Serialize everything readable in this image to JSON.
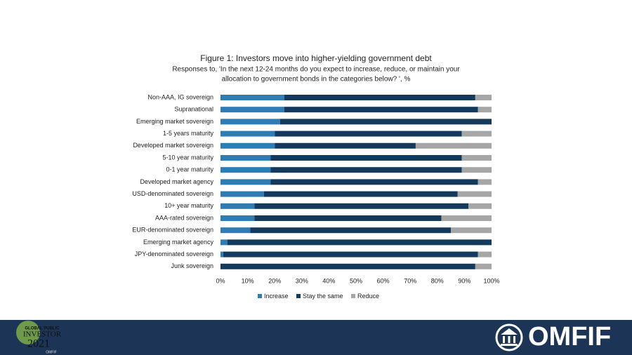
{
  "chart_data": {
    "type": "stacked-bar-horizontal",
    "title": "Figure 1: Investors move into higher-yielding government debt",
    "subtitle": [
      "Responses to, 'In the next 12-24 months  do you expect to increase, reduce, or maintain your",
      "allocation to government  bonds  in the categories below? ', %"
    ],
    "categories": [
      "Non-AAA, IG sovereign",
      "Supranational",
      "Emerging market sovereign",
      "1-5 years maturity",
      "Developed market sovereign",
      "5-10 year maturity",
      "0-1 year maturity",
      "Developed market agency",
      "USD-denominated sovereign",
      "10+ year maturity",
      "AAA-rated sovereign",
      "EUR-denominated sovereign",
      "Emerging market agency",
      "JPY-denominated sovereign",
      "Junk sovereign"
    ],
    "series": [
      {
        "name": "Increase",
        "color": "#2e7cb4",
        "values": [
          23.5,
          23.5,
          22,
          20,
          20,
          18.5,
          18.5,
          18.5,
          16,
          12.5,
          12.5,
          11,
          2.5,
          1,
          0
        ]
      },
      {
        "name": "Stay the same",
        "color": "#133a5c",
        "values": [
          70.5,
          71.5,
          78,
          69,
          52,
          70.5,
          70.5,
          76.5,
          71.5,
          79,
          69,
          74,
          97.5,
          94,
          94
        ]
      },
      {
        "name": "Reduce",
        "color": "#a6a6a6",
        "values": [
          6,
          5,
          0,
          11,
          28,
          11,
          11,
          5,
          12.5,
          8.5,
          18.5,
          15,
          0,
          5,
          6
        ]
      }
    ],
    "xlim": [
      0,
      100
    ],
    "xticks": [
      {
        "value": 0,
        "label": "0%"
      },
      {
        "value": 10,
        "label": "10%"
      },
      {
        "value": 20,
        "label": "20%"
      },
      {
        "value": 30,
        "label": "30%"
      },
      {
        "value": 40,
        "label": "40%"
      },
      {
        "value": 50,
        "label": "50%"
      },
      {
        "value": 60,
        "label": "60%"
      },
      {
        "value": 70,
        "label": "70%"
      },
      {
        "value": 80,
        "label": "80%"
      },
      {
        "value": 90,
        "label": "90%"
      },
      {
        "value": 100,
        "label": "100%"
      }
    ],
    "legend": "bottom"
  },
  "footer": {
    "badge": [
      "GLOBAL PUBLIC",
      "INVESTOR",
      "2021",
      "OMFIF"
    ],
    "logo": "OMFIF"
  }
}
